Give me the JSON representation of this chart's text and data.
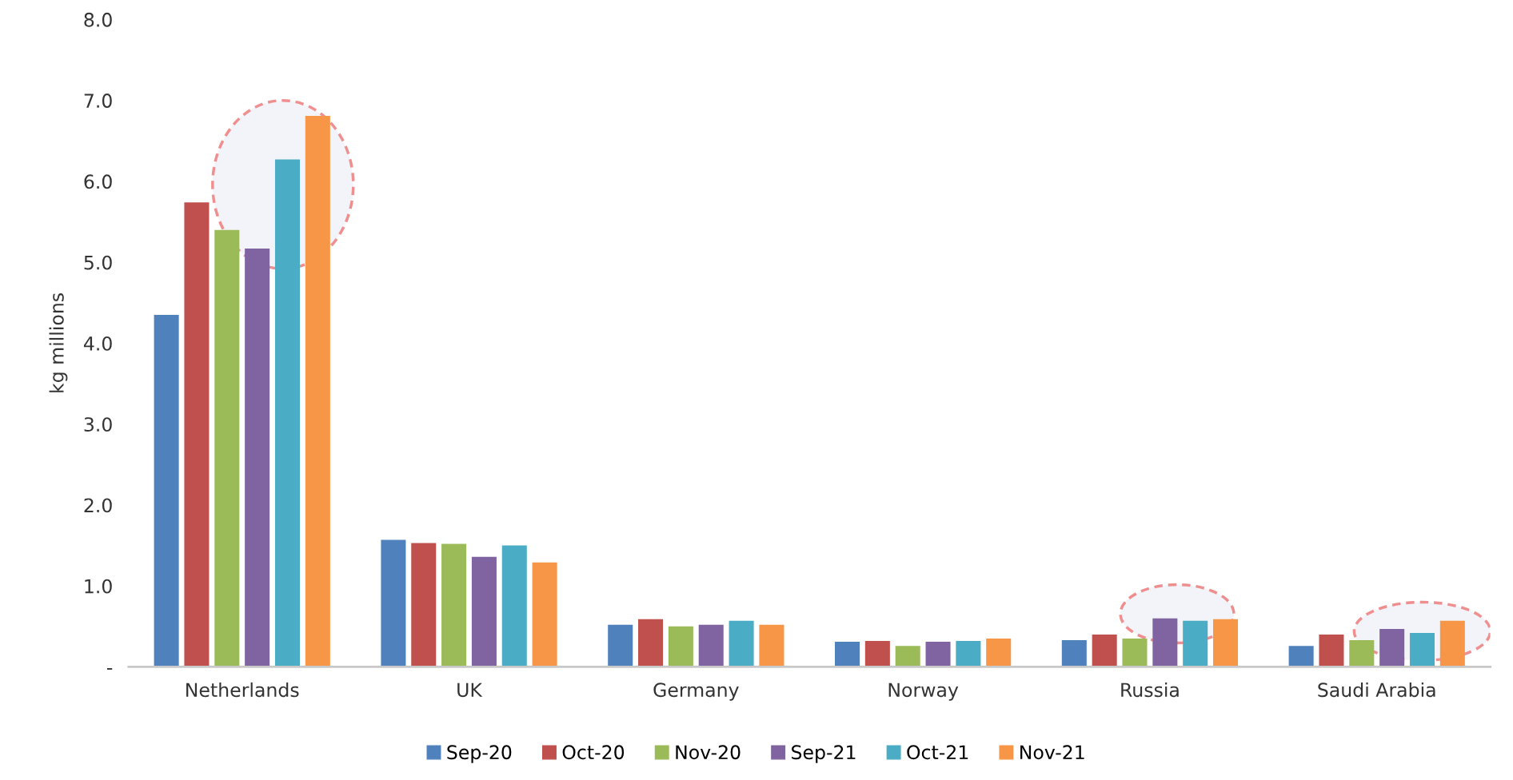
{
  "chart_data": {
    "type": "bar",
    "ylabel": "kg millions",
    "categories": [
      "Netherlands",
      "UK",
      "Germany",
      "Norway",
      "Russia",
      "Saudi Arabia"
    ],
    "series": [
      {
        "name": "Sep-20",
        "color": "#4f81bd",
        "values": [
          4.35,
          1.57,
          0.52,
          0.31,
          0.33,
          0.26
        ]
      },
      {
        "name": "Oct-20",
        "color": "#c0504d",
        "values": [
          5.74,
          1.53,
          0.59,
          0.32,
          0.4,
          0.4
        ]
      },
      {
        "name": "Nov-20",
        "color": "#9bbb59",
        "values": [
          5.4,
          1.52,
          0.5,
          0.26,
          0.35,
          0.33
        ]
      },
      {
        "name": "Sep-21",
        "color": "#8064a2",
        "values": [
          5.17,
          1.36,
          0.52,
          0.31,
          0.6,
          0.47
        ]
      },
      {
        "name": "Oct-21",
        "color": "#4bacc6",
        "values": [
          6.27,
          1.5,
          0.57,
          0.32,
          0.57,
          0.42
        ]
      },
      {
        "name": "Nov-21",
        "color": "#f79646",
        "values": [
          6.81,
          1.29,
          0.52,
          0.35,
          0.59,
          0.57
        ]
      }
    ],
    "ylim": [
      0,
      8
    ],
    "yticks": [
      {
        "value": 0,
        "label": "-"
      },
      {
        "value": 1,
        "label": "1.0"
      },
      {
        "value": 2,
        "label": "2.0"
      },
      {
        "value": 3,
        "label": "3.0"
      },
      {
        "value": 4,
        "label": "4.0"
      },
      {
        "value": 5,
        "label": "5.0"
      },
      {
        "value": 6,
        "label": "6.0"
      },
      {
        "value": 7,
        "label": "7.0"
      },
      {
        "value": 8,
        "label": "8.0"
      }
    ],
    "grid": false,
    "legend": "bottom"
  }
}
